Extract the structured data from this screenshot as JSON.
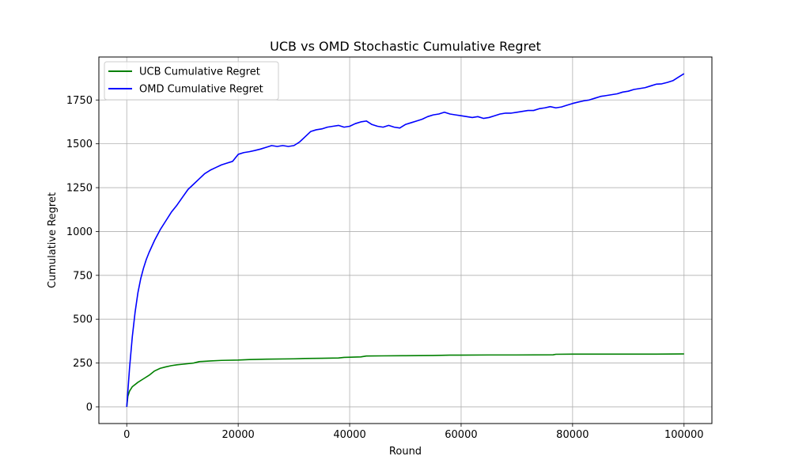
{
  "chart_data": {
    "type": "line",
    "title": "UCB vs OMD Stochastic Cumulative Regret",
    "xlabel": "Round",
    "ylabel": "Cumulative Regret",
    "xlim": [
      -5000,
      105000
    ],
    "ylim": [
      -95,
      1995
    ],
    "xticks": [
      0,
      20000,
      40000,
      60000,
      80000,
      100000
    ],
    "yticks": [
      0,
      250,
      500,
      750,
      1000,
      1250,
      1500,
      1750
    ],
    "grid": true,
    "legend_position": "top-left",
    "series": [
      {
        "name": "UCB Cumulative Regret",
        "color": "#008000",
        "x": [
          0,
          200,
          500,
          1000,
          2000,
          3000,
          4000,
          5000,
          6000,
          7000,
          8000,
          9000,
          10000,
          12000,
          13000,
          15000,
          17000,
          20000,
          22000,
          25000,
          30000,
          32000,
          35000,
          38000,
          39000,
          42000,
          43000,
          46000,
          50000,
          55000,
          58000,
          60000,
          65000,
          70000,
          76500,
          77000,
          80000,
          85000,
          90000,
          95000,
          100000
        ],
        "values": [
          0,
          60,
          90,
          115,
          140,
          160,
          180,
          205,
          220,
          228,
          235,
          240,
          243,
          250,
          258,
          262,
          265,
          267,
          270,
          272,
          274,
          276,
          277,
          279,
          282,
          285,
          290,
          291,
          292,
          293,
          295,
          295,
          296,
          296,
          297,
          300,
          301,
          301,
          301,
          301,
          302
        ]
      },
      {
        "name": "OMD Cumulative Regret",
        "color": "#0000ff",
        "x": [
          0,
          500,
          1000,
          1500,
          2000,
          2500,
          3000,
          3500,
          4000,
          5000,
          6000,
          7000,
          8000,
          9000,
          10000,
          11000,
          12000,
          13000,
          14000,
          15000,
          16000,
          17000,
          18000,
          19000,
          20000,
          21000,
          22000,
          23000,
          24000,
          25000,
          26000,
          27000,
          28000,
          29000,
          30000,
          31000,
          32000,
          33000,
          34000,
          35000,
          36000,
          37000,
          38000,
          39000,
          40000,
          41000,
          42000,
          43000,
          44000,
          45000,
          46000,
          47000,
          48000,
          49000,
          50000,
          51000,
          52000,
          53000,
          54000,
          55000,
          56000,
          57000,
          58000,
          59000,
          60000,
          61000,
          62000,
          63000,
          64000,
          65000,
          66000,
          67000,
          68000,
          69000,
          70000,
          71000,
          72000,
          73000,
          74000,
          75000,
          76000,
          77000,
          78000,
          79000,
          80000,
          81000,
          82000,
          83000,
          84000,
          85000,
          86000,
          87000,
          88000,
          89000,
          90000,
          91000,
          92000,
          93000,
          94000,
          95000,
          96000,
          97000,
          98000,
          99000,
          100000
        ],
        "values": [
          0,
          220,
          400,
          540,
          650,
          730,
          790,
          840,
          880,
          950,
          1010,
          1060,
          1110,
          1150,
          1195,
          1240,
          1270,
          1300,
          1330,
          1350,
          1365,
          1380,
          1390,
          1400,
          1440,
          1450,
          1455,
          1462,
          1470,
          1480,
          1490,
          1485,
          1490,
          1485,
          1490,
          1510,
          1540,
          1570,
          1580,
          1585,
          1595,
          1600,
          1605,
          1595,
          1600,
          1615,
          1625,
          1630,
          1610,
          1600,
          1595,
          1605,
          1595,
          1590,
          1610,
          1620,
          1630,
          1640,
          1655,
          1665,
          1670,
          1680,
          1670,
          1665,
          1660,
          1655,
          1650,
          1655,
          1645,
          1650,
          1660,
          1670,
          1675,
          1675,
          1680,
          1685,
          1690,
          1690,
          1700,
          1705,
          1712,
          1705,
          1710,
          1720,
          1730,
          1738,
          1745,
          1750,
          1760,
          1770,
          1775,
          1780,
          1785,
          1795,
          1800,
          1810,
          1815,
          1820,
          1830,
          1840,
          1842,
          1850,
          1860,
          1880,
          1900
        ]
      }
    ]
  }
}
